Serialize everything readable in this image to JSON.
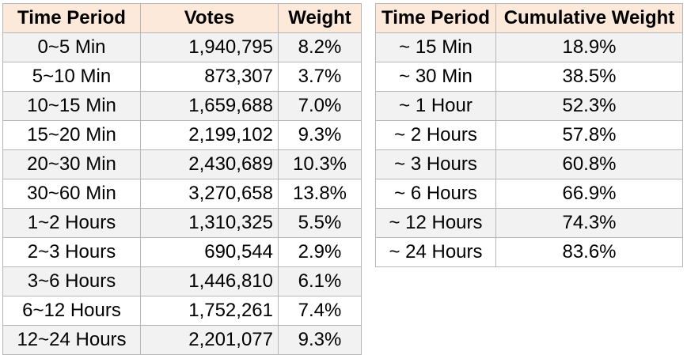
{
  "left_table": {
    "headers": [
      "Time Period",
      "Votes",
      "Weight"
    ],
    "rows": [
      [
        "0~5 Min",
        "1,940,795",
        "8.2%"
      ],
      [
        "5~10 Min",
        "873,307",
        "3.7%"
      ],
      [
        "10~15 Min",
        "1,659,688",
        "7.0%"
      ],
      [
        "15~20 Min",
        "2,199,102",
        "9.3%"
      ],
      [
        "20~30 Min",
        "2,430,689",
        "10.3%"
      ],
      [
        "30~60 Min",
        "3,270,658",
        "13.8%"
      ],
      [
        "1~2 Hours",
        "1,310,325",
        "5.5%"
      ],
      [
        "2~3 Hours",
        "690,544",
        "2.9%"
      ],
      [
        "3~6 Hours",
        "1,446,810",
        "6.1%"
      ],
      [
        "6~12 Hours",
        "1,752,261",
        "7.4%"
      ],
      [
        "12~24 Hours",
        "2,201,077",
        "9.3%"
      ]
    ]
  },
  "right_table": {
    "headers": [
      "Time Period",
      "Cumulative Weight"
    ],
    "rows": [
      [
        "~ 15 Min",
        "18.9%"
      ],
      [
        "~ 30 Min",
        "38.5%"
      ],
      [
        "~ 1 Hour",
        "52.3%"
      ],
      [
        "~ 2 Hours",
        "57.8%"
      ],
      [
        "~ 3 Hours",
        "60.8%"
      ],
      [
        "~ 6 Hours",
        "66.9%"
      ],
      [
        "~ 12 Hours",
        "74.3%"
      ],
      [
        "~ 24 Hours",
        "83.6%"
      ]
    ]
  },
  "colors": {
    "header_bg": "#fde9d9",
    "stripe_bg": "#f2f2f2",
    "border": "#b7b7b7"
  }
}
